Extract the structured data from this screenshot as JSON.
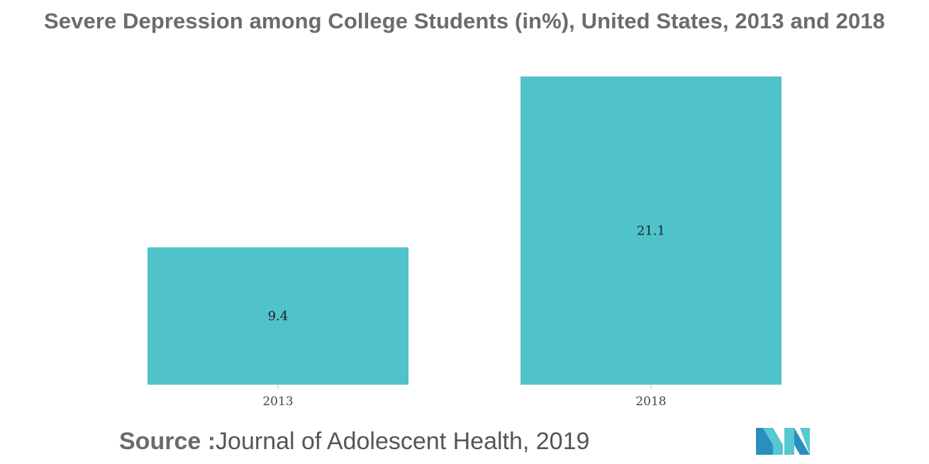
{
  "chart_data": {
    "type": "bar",
    "title": "Severe Depression among College Students (in%), United States, 2013 and 2018",
    "categories": [
      "2013",
      "2018"
    ],
    "values": [
      9.4,
      21.1
    ],
    "value_labels": [
      "9.4",
      "21.1"
    ],
    "xlabel": "",
    "ylabel": "",
    "ylim": [
      0,
      21.1
    ],
    "grid": false,
    "legend": "none",
    "bar_color": "#4fc3c9"
  },
  "source": {
    "prefix": "Source :",
    "text": "Journal of Adolescent Health, 2019"
  },
  "logo": {
    "icon": "mordor-intelligence-logo",
    "colors": [
      "#2a8fbf",
      "#55c8d2"
    ]
  }
}
